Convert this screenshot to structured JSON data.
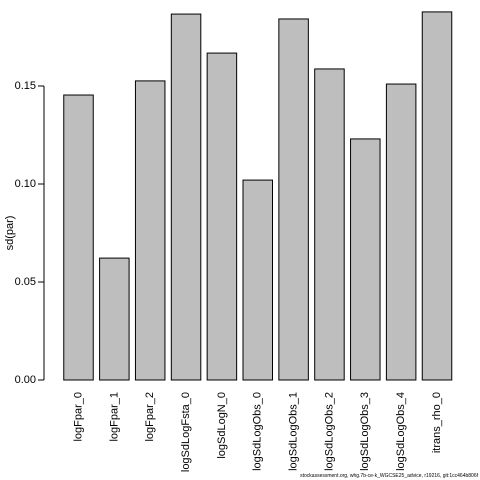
{
  "chart_data": {
    "type": "bar",
    "y_label": "sd(par)",
    "footer": "stockassessment.org, whg.7b-ce-k_WGCSE25_advice, r19216, git:1cc464b806f",
    "categories": [
      "logFpar_0",
      "logFpar_1",
      "logFpar_2",
      "logSdLogFsta_0",
      "logSdLogN_0",
      "logSdLogObs_0",
      "logSdLogObs_1",
      "logSdLogObs_2",
      "logSdLogObs_3",
      "logSdLogObs_4",
      "itrans_rho_0"
    ],
    "values": [
      0.1454,
      0.0622,
      0.1526,
      0.1867,
      0.1668,
      0.102,
      0.1842,
      0.1587,
      0.123,
      0.151,
      0.1878
    ],
    "color": "#bebebe",
    "ylim": [
      0,
      0.19
    ],
    "yticks": [
      {
        "value": 0,
        "label": "0.00"
      },
      {
        "value": 0.05,
        "label": "0.05"
      },
      {
        "value": 0.1,
        "label": "0.10"
      },
      {
        "value": 0.15,
        "label": "0.15"
      }
    ]
  }
}
